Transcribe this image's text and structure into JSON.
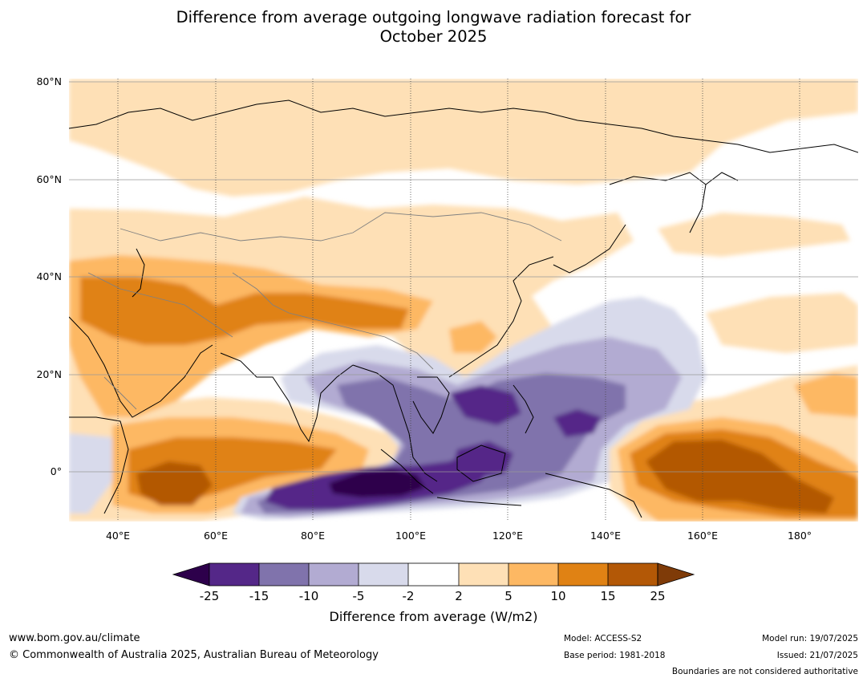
{
  "title_line1": "Difference from average outgoing longwave radiation forecast for",
  "title_line2": "October 2025",
  "map": {
    "lat_labels": [
      "80°N",
      "60°N",
      "40°N",
      "20°N",
      "0°"
    ],
    "lon_labels": [
      "40°E",
      "60°E",
      "80°E",
      "100°E",
      "120°E",
      "140°E",
      "160°E",
      "180°"
    ]
  },
  "colorbar": {
    "title": "Difference from average (W/m2)",
    "ticks": [
      "-25",
      "-15",
      "-10",
      "-5",
      "-2",
      "2",
      "5",
      "10",
      "15",
      "25"
    ],
    "colors": [
      "#2d004b",
      "#542788",
      "#8073ac",
      "#b2abd2",
      "#d8daeb",
      "#ffffff",
      "#fee0b6",
      "#fdb863",
      "#e08214",
      "#b35806",
      "#7f3b08"
    ]
  },
  "footer": {
    "website": "www.bom.gov.au/climate",
    "copyright": "© Commonwealth of Australia 2025, Australian Bureau of Meteorology",
    "model": "Model: ACCESS-S2",
    "base_period": "Base period: 1981-2018",
    "model_run": "Model run: 19/07/2025",
    "issued": "Issued: 21/07/2025",
    "disclaimer": "Boundaries are not considered authoritative"
  }
}
